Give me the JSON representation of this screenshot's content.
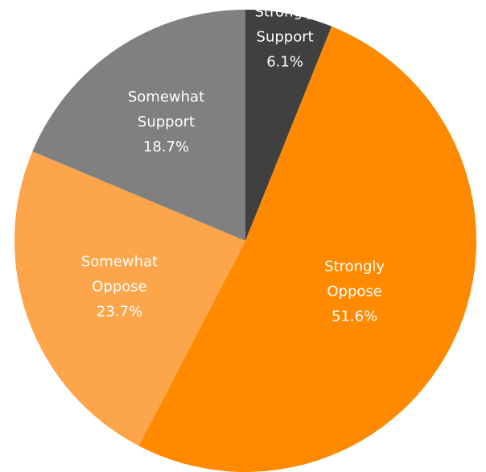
{
  "chart_data": {
    "type": "pie",
    "title": "",
    "slices": [
      {
        "label": "Strongly Support",
        "label_lines": [
          "Strongly",
          "Support",
          "6.1%"
        ],
        "value": 6.1,
        "color": "#404040"
      },
      {
        "label": "Strongly Oppose",
        "label_lines": [
          "Strongly",
          "Oppose",
          "51.6%"
        ],
        "value": 51.6,
        "color": "#ff8a00"
      },
      {
        "label": "Somewhat Oppose",
        "label_lines": [
          "Somewhat",
          "Oppose",
          "23.7%"
        ],
        "value": 23.7,
        "color": "#fca54a"
      },
      {
        "label": "Somewhat Support",
        "label_lines": [
          "Somewhat",
          "Support",
          "18.7%"
        ],
        "value": 18.7,
        "color": "#808080"
      }
    ],
    "start_angle_deg": 0,
    "direction": "clockwise",
    "legend": "none"
  }
}
